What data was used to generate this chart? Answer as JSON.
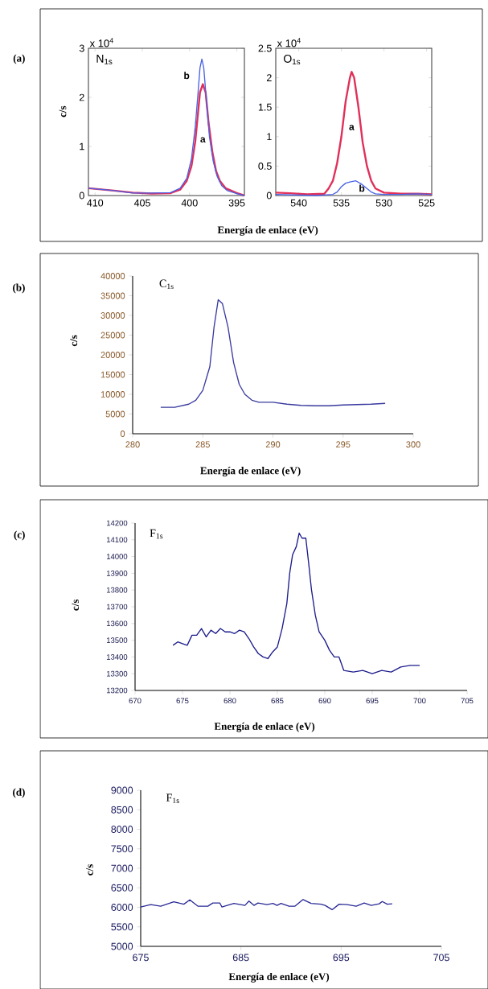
{
  "chart_data": [
    {
      "type": "line",
      "xlabel": "Energía de enlace (eV)",
      "ylabel": "c/s",
      "annotations": [
        "(a)",
        "x 10$^{4}$",
        "N$_{1s}$"
      ],
      "xlim": [
        410.7,
        394.2
      ],
      "ylim": [
        0,
        3
      ],
      "xticks": [
        410,
        405,
        400,
        395
      ],
      "yticks": [
        0,
        1,
        2,
        3
      ],
      "series": [
        {
          "name": "a",
          "color": "#e0305a",
          "x": [
            410.7,
            408,
            406,
            404,
            402,
            401,
            400.3,
            399.8,
            399.4,
            399.1,
            398.9,
            398.6,
            398.3,
            398.0,
            397.6,
            397.2,
            396.8,
            396.2,
            395,
            394.2
          ],
          "values": [
            0.15,
            0.1,
            0.06,
            0.04,
            0.05,
            0.12,
            0.3,
            0.6,
            1.1,
            1.7,
            2.1,
            2.27,
            2.1,
            1.5,
            0.9,
            0.5,
            0.3,
            0.15,
            0.05,
            0.0
          ]
        },
        {
          "name": "b",
          "color": "#4a62e6",
          "x": [
            410.7,
            408,
            406,
            404,
            402,
            401,
            400.3,
            399.8,
            399.4,
            399.1,
            398.9,
            398.7,
            398.5,
            398.2,
            397.9,
            397.5,
            397.1,
            396.6,
            396,
            395,
            394.2
          ],
          "values": [
            0.15,
            0.1,
            0.05,
            0.05,
            0.06,
            0.15,
            0.35,
            0.75,
            1.4,
            2.1,
            2.6,
            2.78,
            2.6,
            1.9,
            1.2,
            0.7,
            0.4,
            0.2,
            0.1,
            0.04,
            0.0
          ]
        }
      ]
    },
    {
      "type": "line",
      "annotations": [
        "x 10$^{4}$",
        "O$_{1s}$"
      ],
      "xlim": [
        542.7,
        524.4
      ],
      "ylim": [
        0,
        2.5
      ],
      "xticks": [
        540,
        535,
        530,
        525
      ],
      "yticks": [
        0,
        0.5,
        1,
        1.5,
        2,
        2.5
      ],
      "series": [
        {
          "name": "a",
          "color": "#e0305a",
          "x": [
            542.7,
            541,
            539,
            537,
            536.5,
            536,
            535.5,
            535,
            534.5,
            534.0,
            533.8,
            533.5,
            533,
            532.5,
            532,
            531.5,
            531,
            530,
            528,
            526,
            524.4
          ],
          "values": [
            0.05,
            0.04,
            0.02,
            0.03,
            0.12,
            0.25,
            0.55,
            1.0,
            1.6,
            2.0,
            2.1,
            2.0,
            1.5,
            0.9,
            0.5,
            0.25,
            0.12,
            0.05,
            0.03,
            0.03,
            0.02
          ]
        },
        {
          "name": "b",
          "color": "#4a62e6",
          "x": [
            542.7,
            538,
            536,
            535.5,
            535,
            534.5,
            534,
            533.3,
            532.7,
            532,
            531.5,
            531,
            530,
            528,
            526,
            524.4
          ],
          "values": [
            0.02,
            0.0,
            0.02,
            0.06,
            0.15,
            0.21,
            0.23,
            0.25,
            0.2,
            0.12,
            0.06,
            0.03,
            0.02,
            0.02,
            0.03,
            0.02
          ]
        }
      ]
    },
    {
      "type": "line",
      "xlabel": "Energía de enlace (eV)",
      "ylabel": "c/s",
      "annotations": [
        "(b)",
        "C$_{1s}$"
      ],
      "xlim": [
        280,
        300
      ],
      "ylim": [
        0,
        40000
      ],
      "xticks": [
        280,
        285,
        290,
        295,
        300
      ],
      "yticks": [
        0,
        5000,
        10000,
        15000,
        20000,
        25000,
        30000,
        35000,
        40000
      ],
      "series": [
        {
          "color": "#3a3aa0",
          "x": [
            282,
            283,
            284,
            284.5,
            285,
            285.5,
            285.8,
            286.1,
            286.4,
            286.8,
            287.2,
            287.6,
            288,
            288.5,
            289,
            290,
            291,
            292,
            293,
            294,
            295,
            296,
            297,
            298
          ],
          "values": [
            6700,
            6700,
            7500,
            8500,
            11000,
            17000,
            27000,
            34000,
            33000,
            27000,
            18000,
            12500,
            10000,
            8500,
            8000,
            8000,
            7500,
            7200,
            7100,
            7100,
            7300,
            7400,
            7500,
            7700
          ]
        }
      ]
    },
    {
      "type": "line",
      "xlabel": "Energía de enlace (eV)",
      "ylabel": "c/s",
      "annotations": [
        "(c)",
        "F$_{1s}$"
      ],
      "xlim": [
        670,
        705
      ],
      "ylim": [
        13200,
        14200
      ],
      "xticks": [
        670,
        675,
        680,
        685,
        690,
        695,
        700,
        705
      ],
      "yticks": [
        13200,
        13300,
        13400,
        13500,
        13600,
        13700,
        13800,
        13900,
        14000,
        14100,
        14200
      ],
      "series": [
        {
          "color": "#1c1c8c",
          "x": [
            674,
            674.5,
            675,
            675.5,
            676,
            676.5,
            677,
            677.5,
            678,
            678.5,
            679,
            679.5,
            680,
            680.5,
            681,
            681.5,
            682,
            682.5,
            683,
            683.5,
            684,
            684.5,
            685,
            685.5,
            686,
            686.3,
            686.6,
            687,
            687.3,
            687.6,
            688,
            688.3,
            688.6,
            689,
            689.4,
            690,
            690.5,
            691,
            691.5,
            692,
            693,
            694,
            695,
            696,
            697,
            698,
            699,
            700
          ],
          "values": [
            13470,
            13490,
            13480,
            13470,
            13530,
            13530,
            13570,
            13520,
            13560,
            13540,
            13570,
            13550,
            13550,
            13540,
            13560,
            13550,
            13510,
            13460,
            13420,
            13400,
            13390,
            13430,
            13460,
            13570,
            13720,
            13900,
            14010,
            14060,
            14140,
            14110,
            14110,
            13960,
            13800,
            13650,
            13550,
            13500,
            13440,
            13400,
            13400,
            13320,
            13310,
            13320,
            13300,
            13320,
            13310,
            13340,
            13350,
            13350
          ]
        }
      ]
    },
    {
      "type": "line",
      "xlabel": "Energía de enlace (eV)",
      "ylabel": "c/s",
      "annotations": [
        "(d)",
        "F$_{1s}$"
      ],
      "xlim": [
        675,
        705
      ],
      "ylim": [
        5000,
        9000
      ],
      "xticks": [
        675,
        685,
        695,
        705
      ],
      "yticks": [
        5000,
        5500,
        6000,
        6500,
        7000,
        7500,
        8000,
        8500,
        9000
      ],
      "series": [
        {
          "color": "#2a2a96",
          "x": [
            675,
            676,
            677,
            678.3,
            679.3,
            679.9,
            680.7,
            681.7,
            682.2,
            682.9,
            683.1,
            684.3,
            685.4,
            685.8,
            686.3,
            686.7,
            687.6,
            688.2,
            688.6,
            689,
            689.8,
            690.4,
            691.2,
            692,
            693,
            693.4,
            694.1,
            694.8,
            695.6,
            696.5,
            697.3,
            698,
            698.8,
            699.1,
            699.6,
            700.1
          ],
          "values": [
            6010,
            6070,
            6030,
            6140,
            6080,
            6190,
            6030,
            6030,
            6110,
            6110,
            6010,
            6100,
            6050,
            6160,
            6050,
            6110,
            6070,
            6100,
            6050,
            6100,
            6030,
            6030,
            6200,
            6100,
            6080,
            6050,
            5940,
            6080,
            6070,
            6030,
            6110,
            6050,
            6090,
            6150,
            6080,
            6090
          ]
        }
      ]
    }
  ]
}
